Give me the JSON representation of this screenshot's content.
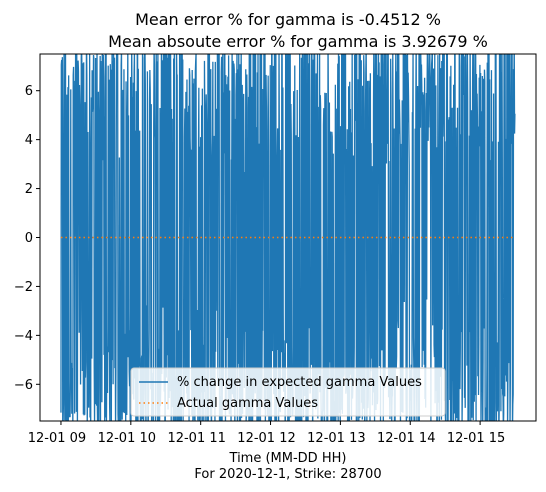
{
  "chart_data": {
    "type": "line",
    "title_line1": "Mean error % for gamma is -0.4512 %",
    "title_line2": "Mean absoute error % for gamma is 3.92679 %",
    "xlabel": "Time (MM-DD HH)",
    "xlabel_sub": "For 2020-12-1, Strike: 28700",
    "ylim": [
      -7.5,
      7.5
    ],
    "xlim_hours": [
      8.7,
      15.8
    ],
    "x_ticks": [
      {
        "label": "12-01 09",
        "hour": 9
      },
      {
        "label": "12-01 10",
        "hour": 10
      },
      {
        "label": "12-01 11",
        "hour": 11
      },
      {
        "label": "12-01 12",
        "hour": 12
      },
      {
        "label": "12-01 13",
        "hour": 13
      },
      {
        "label": "12-01 14",
        "hour": 14
      },
      {
        "label": "12-01 15",
        "hour": 15
      }
    ],
    "y_ticks": [
      {
        "label": "−6",
        "value": -6
      },
      {
        "label": "−4",
        "value": -4
      },
      {
        "label": "−2",
        "value": -2
      },
      {
        "label": "0",
        "value": 0
      },
      {
        "label": "2",
        "value": 2
      },
      {
        "label": "4",
        "value": 4
      },
      {
        "label": "6",
        "value": 6
      }
    ],
    "grid": false,
    "legend_position": "lower center",
    "series": [
      {
        "name": "% change in expected gamma Values",
        "color": "#1f77b4",
        "style": "solid",
        "x_range_hours": [
          9.0,
          15.5
        ],
        "approx_range": [
          -8.5,
          8.5
        ],
        "density": "dense oscillation"
      },
      {
        "name": "Actual gamma Values",
        "color": "#ff7f0e",
        "style": "dotted",
        "x_range_hours": [
          9.0,
          15.5
        ],
        "values": [
          0,
          0
        ]
      }
    ]
  }
}
